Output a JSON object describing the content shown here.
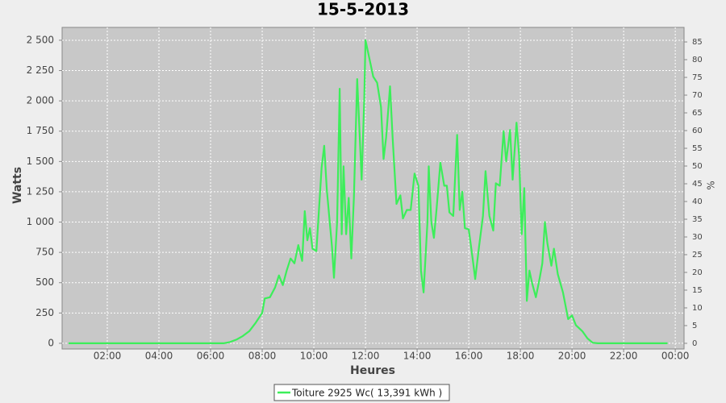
{
  "chart_data": {
    "type": "line",
    "title": "15-5-2013",
    "xlabel": "Heures",
    "ylabel": "Watts",
    "y2label": "%",
    "x": [
      0.5,
      6.5,
      6.75,
      7.0,
      7.25,
      7.5,
      7.75,
      8.0,
      8.1,
      8.3,
      8.5,
      8.65,
      8.8,
      8.95,
      9.1,
      9.25,
      9.4,
      9.55,
      9.65,
      9.75,
      9.85,
      9.95,
      10.1,
      10.3,
      10.4,
      10.5,
      10.7,
      10.78,
      10.9,
      11.0,
      11.08,
      11.15,
      11.25,
      11.35,
      11.45,
      11.55,
      11.68,
      11.78,
      11.85,
      11.95,
      12.0,
      12.1,
      12.2,
      12.3,
      12.45,
      12.6,
      12.7,
      12.8,
      12.95,
      13.05,
      13.2,
      13.35,
      13.45,
      13.6,
      13.75,
      13.9,
      14.05,
      14.15,
      14.25,
      14.4,
      14.45,
      14.55,
      14.65,
      14.75,
      14.9,
      15.05,
      15.15,
      15.25,
      15.4,
      15.55,
      15.65,
      15.75,
      15.85,
      16.0,
      16.15,
      16.25,
      16.4,
      16.55,
      16.65,
      16.8,
      16.95,
      17.05,
      17.2,
      17.35,
      17.45,
      17.6,
      17.7,
      17.85,
      17.95,
      18.05,
      18.15,
      18.25,
      18.35,
      18.45,
      18.6,
      18.75,
      18.85,
      18.95,
      19.05,
      19.2,
      19.3,
      19.45,
      19.65,
      19.85,
      20.0,
      20.15,
      20.4,
      20.6,
      20.8,
      21.0,
      23.7
    ],
    "series": [
      {
        "name": "Toiture 2925 Wc( 13,391 kWh )",
        "color": "#3cee5a",
        "values": [
          0,
          0,
          10,
          30,
          60,
          100,
          170,
          250,
          370,
          380,
          460,
          560,
          480,
          600,
          700,
          660,
          810,
          680,
          1090,
          850,
          950,
          780,
          760,
          1450,
          1630,
          1270,
          800,
          540,
          1000,
          2100,
          900,
          1460,
          900,
          1200,
          700,
          1200,
          2180,
          1700,
          1350,
          2000,
          2500,
          2400,
          2300,
          2200,
          2150,
          1950,
          1520,
          1700,
          2120,
          1700,
          1150,
          1220,
          1030,
          1100,
          1100,
          1400,
          1300,
          600,
          420,
          1000,
          1460,
          1000,
          870,
          1100,
          1490,
          1300,
          1300,
          1080,
          1050,
          1720,
          1100,
          1250,
          950,
          940,
          700,
          530,
          800,
          1050,
          1420,
          1050,
          930,
          1320,
          1300,
          1750,
          1500,
          1760,
          1350,
          1820,
          1550,
          900,
          1280,
          350,
          600,
          500,
          380,
          540,
          660,
          1000,
          820,
          640,
          780,
          570,
          420,
          200,
          230,
          150,
          100,
          40,
          5,
          0,
          0
        ]
      }
    ],
    "xlim": [
      0.25,
      24.34
    ],
    "xticks": [
      {
        "value": 2,
        "label": "02:00"
      },
      {
        "value": 4,
        "label": "04:00"
      },
      {
        "value": 6,
        "label": "06:00"
      },
      {
        "value": 8,
        "label": "08:00"
      },
      {
        "value": 10,
        "label": "10:00"
      },
      {
        "value": 12,
        "label": "12:00"
      },
      {
        "value": 14,
        "label": "14:00"
      },
      {
        "value": 16,
        "label": "16:00"
      },
      {
        "value": 18,
        "label": "18:00"
      },
      {
        "value": 20,
        "label": "20:00"
      },
      {
        "value": 22,
        "label": "22:00"
      },
      {
        "value": 24,
        "label": "00:00"
      }
    ],
    "ylim": [
      -47,
      2606
    ],
    "yticks": [
      0,
      250,
      500,
      750,
      {
        "value": 1000,
        "label": "1 000"
      },
      {
        "value": 1250,
        "label": "1 250"
      },
      {
        "value": 1500,
        "label": "1 500"
      },
      {
        "value": 1750,
        "label": "1 750"
      },
      {
        "value": 2000,
        "label": "2 000"
      },
      {
        "value": 2250,
        "label": "2 250"
      },
      {
        "value": 2500,
        "label": "2 500"
      }
    ],
    "y2lim": [
      -1.6,
      89.1
    ],
    "y2ticks": [
      0,
      5,
      10,
      15,
      20,
      25,
      30,
      35,
      40,
      45,
      50,
      55,
      60,
      65,
      70,
      75,
      80,
      85
    ],
    "grid": true,
    "legend": "bottom"
  }
}
